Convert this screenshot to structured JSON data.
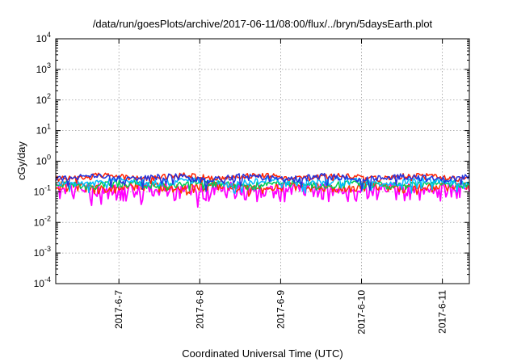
{
  "chart_data": {
    "type": "line",
    "title": "/data/run/goesPlots/archive/2017-06-11/08:00/flux/../bryn/5daysEarth.plot",
    "xlabel": "Coordinated Universal Time (UTC)",
    "ylabel": "cGy/day",
    "yscale": "log",
    "ylim": [
      0.0001,
      10000
    ],
    "xlim": [
      "2017-06-06T05:15",
      "2017-06-11T08:00"
    ],
    "grid": true,
    "y_ticks": [
      {
        "value": 0.0001,
        "base": "10",
        "exp": "-4"
      },
      {
        "value": 0.001,
        "base": "10",
        "exp": "-3"
      },
      {
        "value": 0.01,
        "base": "10",
        "exp": "-2"
      },
      {
        "value": 0.1,
        "base": "10",
        "exp": "-1"
      },
      {
        "value": 1,
        "base": "10",
        "exp": "0"
      },
      {
        "value": 10,
        "base": "10",
        "exp": "1"
      },
      {
        "value": 100,
        "base": "10",
        "exp": "2"
      },
      {
        "value": 1000,
        "base": "10",
        "exp": "3"
      },
      {
        "value": 10000,
        "base": "10",
        "exp": "4"
      }
    ],
    "x_ticks": [
      {
        "value": "2017-06-07",
        "label": "2017-6-7"
      },
      {
        "value": "2017-06-08",
        "label": "2017-6-8"
      },
      {
        "value": "2017-06-09",
        "label": "2017-6-9"
      },
      {
        "value": "2017-06-10",
        "label": "2017-6-10"
      },
      {
        "value": "2017-06-11",
        "label": "2017-6-11"
      }
    ],
    "series": [
      {
        "color": "#ff00ff",
        "base": 0.12,
        "jitter": 0.05,
        "dips": true
      },
      {
        "color": "#ff3300",
        "base": 0.145,
        "jitter": 0.035,
        "dips": false
      },
      {
        "color": "#00cc55",
        "base": 0.175,
        "jitter": 0.035,
        "dips": false
      },
      {
        "color": "#00bbff",
        "base": 0.22,
        "jitter": 0.04,
        "dips": true
      },
      {
        "color": "#ff2200",
        "base": 0.31,
        "jitter": 0.045,
        "dips": false
      },
      {
        "color": "#2233dd",
        "base": 0.29,
        "jitter": 0.05,
        "dips": true
      }
    ]
  }
}
